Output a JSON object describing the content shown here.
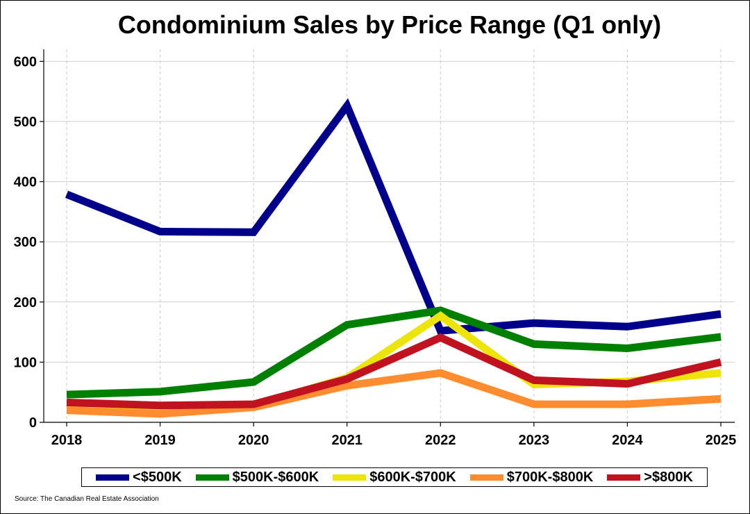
{
  "chart_data": {
    "type": "line",
    "title": "Condominium Sales by Price Range (Q1 only)",
    "categories": [
      "2018",
      "2019",
      "2020",
      "2021",
      "2022",
      "2023",
      "2024",
      "2025"
    ],
    "ylim": [
      0,
      620
    ],
    "yticks": [
      "0",
      "100",
      "200",
      "300",
      "400",
      "500",
      "600"
    ],
    "xlabel": "",
    "ylabel": "",
    "grid": true,
    "legend_position": "bottom",
    "series": [
      {
        "name": "<$500K",
        "color": "#00008B",
        "values": [
          379,
          317,
          316,
          526,
          152,
          165,
          159,
          180
        ]
      },
      {
        "name": "$500K-$600K",
        "color": "#008000",
        "values": [
          46,
          51,
          67,
          162,
          186,
          130,
          123,
          142
        ]
      },
      {
        "name": "$600K-$700K",
        "color": "#EDE40C",
        "values": [
          28,
          24,
          28,
          74,
          177,
          63,
          68,
          82
        ]
      },
      {
        "name": "$700K-$800K",
        "color": "#FF8C2E",
        "values": [
          20,
          14,
          25,
          61,
          82,
          30,
          30,
          39
        ]
      },
      {
        "name": ">$800K",
        "color": "#C1121F",
        "values": [
          33,
          28,
          30,
          72,
          141,
          70,
          64,
          100
        ]
      }
    ]
  },
  "source_note": "Source: The Canadian Real Estate Association"
}
